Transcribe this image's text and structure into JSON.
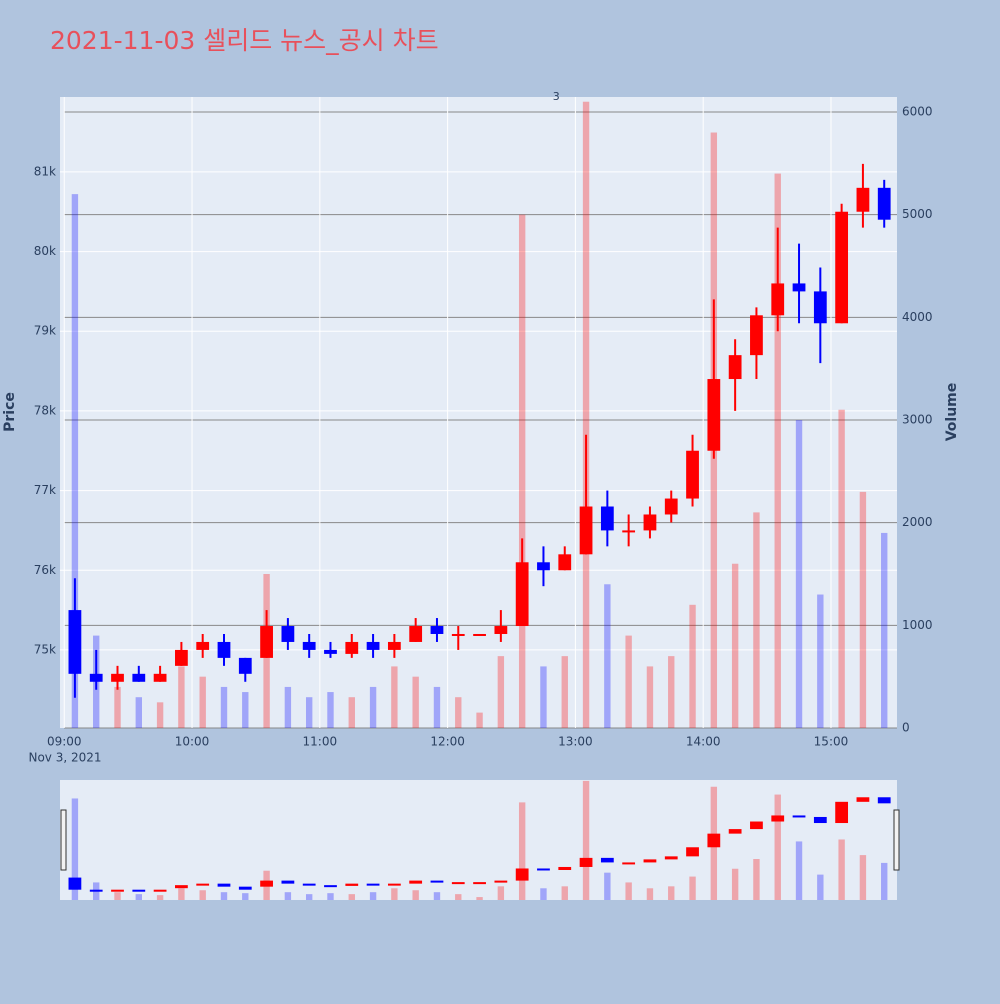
{
  "chart_data": {
    "type": "candlestick",
    "title": "2021-11-03 셀리드 뉴스_공시 차트",
    "y_label": "Price",
    "y2_label": "Volume",
    "x_date_label": "Nov 3, 2021",
    "x": [
      "09:00",
      "09:10",
      "09:20",
      "09:30",
      "09:40",
      "09:50",
      "10:00",
      "10:10",
      "10:20",
      "10:30",
      "10:40",
      "10:50",
      "11:00",
      "11:10",
      "11:20",
      "11:30",
      "11:40",
      "11:50",
      "12:00",
      "12:10",
      "12:20",
      "12:30",
      "12:40",
      "12:50",
      "13:00",
      "13:10",
      "13:20",
      "13:30",
      "13:40",
      "13:50",
      "14:00",
      "14:10",
      "14:20",
      "14:30",
      "14:40",
      "14:50",
      "15:00",
      "15:10",
      "15:20"
    ],
    "open": [
      75500,
      74700,
      74600,
      74700,
      74600,
      74800,
      75000,
      75100,
      74900,
      74900,
      75300,
      75100,
      75000,
      74950,
      75100,
      75000,
      75100,
      75300,
      75200,
      75200,
      75200,
      75300,
      76100,
      76000,
      76200,
      76800,
      76500,
      76500,
      76700,
      76900,
      77500,
      78400,
      78700,
      79200,
      79600,
      79500,
      79100,
      80500,
      80800
    ],
    "high": [
      75900,
      75000,
      74800,
      74800,
      74800,
      75100,
      75200,
      75200,
      74900,
      75500,
      75400,
      75200,
      75100,
      75200,
      75200,
      75200,
      75400,
      75400,
      75300,
      75200,
      75500,
      76400,
      76300,
      76300,
      77700,
      77000,
      76700,
      76800,
      77000,
      77700,
      79400,
      78900,
      79300,
      80300,
      80100,
      79800,
      80600,
      81100,
      80900
    ],
    "low": [
      74400,
      74500,
      74500,
      74600,
      74600,
      74800,
      74900,
      74800,
      74600,
      74900,
      75000,
      74900,
      74900,
      74900,
      74900,
      74900,
      75100,
      75100,
      75000,
      75200,
      75100,
      75300,
      75800,
      76000,
      76200,
      76300,
      76300,
      76400,
      76600,
      76800,
      77400,
      78000,
      78400,
      79000,
      79100,
      78600,
      79100,
      80300,
      80300
    ],
    "close": [
      74700,
      74600,
      74700,
      74600,
      74700,
      75000,
      75100,
      74900,
      74700,
      75300,
      75100,
      75000,
      74950,
      75100,
      75000,
      75100,
      75300,
      75200,
      75200,
      75200,
      75300,
      76100,
      76000,
      76200,
      76800,
      76500,
      76500,
      76700,
      76900,
      77500,
      78400,
      78700,
      79200,
      79600,
      79500,
      79100,
      80500,
      80800,
      80400
    ],
    "volume": [
      5200,
      900,
      400,
      300,
      250,
      600,
      500,
      400,
      350,
      1500,
      400,
      300,
      350,
      300,
      400,
      600,
      500,
      400,
      300,
      150,
      700,
      5000,
      600,
      700,
      6100,
      1400,
      900,
      600,
      700,
      1200,
      5800,
      1600,
      2100,
      5400,
      3000,
      1300,
      3100,
      2300,
      1900
    ],
    "increasing_color": "#ff0000",
    "decreasing_color": "#0000ff",
    "xlim": [
      "08:58",
      "15:31"
    ],
    "xticks": [
      "09:00",
      "10:00",
      "11:00",
      "12:00",
      "13:00",
      "14:00",
      "15:00"
    ],
    "ylim": [
      74020,
      81940
    ],
    "yticks": [
      {
        "value": 75000,
        "label": "75k"
      },
      {
        "value": 76000,
        "label": "76k"
      },
      {
        "value": 77000,
        "label": "77k"
      },
      {
        "value": 78000,
        "label": "78k"
      },
      {
        "value": 79000,
        "label": "79k"
      },
      {
        "value": 80000,
        "label": "80k"
      },
      {
        "value": 81000,
        "label": "81k"
      }
    ],
    "y2lim": [
      0,
      6146
    ],
    "y2ticks": [
      0,
      1000,
      2000,
      3000,
      4000,
      5000,
      6000
    ],
    "annotations": [
      {
        "x": "12:51",
        "text": "3"
      }
    ],
    "grid": true
  }
}
